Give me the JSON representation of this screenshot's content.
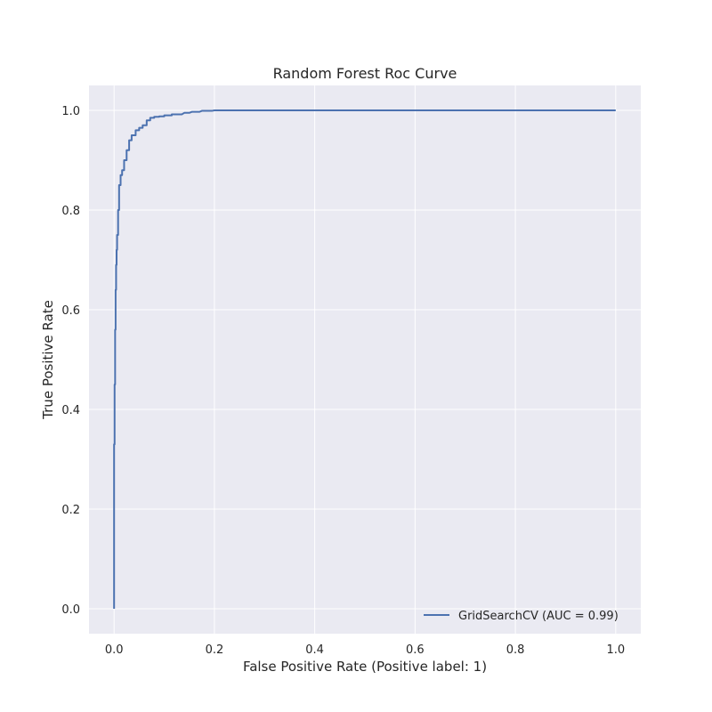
{
  "chart_data": {
    "type": "line",
    "title": "Random Forest Roc Curve",
    "xlabel": "False Positive Rate (Positive label: 1)",
    "ylabel": "True Positive Rate",
    "xlim": [
      -0.05,
      1.05
    ],
    "ylim": [
      -0.05,
      1.05
    ],
    "xticks": [
      0.0,
      0.2,
      0.4,
      0.6,
      0.8,
      1.0
    ],
    "yticks": [
      0.0,
      0.2,
      0.4,
      0.6,
      0.8,
      1.0
    ],
    "xtick_labels": [
      "0.0",
      "0.2",
      "0.4",
      "0.6",
      "0.8",
      "1.0"
    ],
    "ytick_labels": [
      "0.0",
      "0.2",
      "0.4",
      "0.6",
      "0.8",
      "1.0"
    ],
    "grid": true,
    "legend_position": "lower-right",
    "background_color": "#eaeaf2",
    "grid_color": "#ffffff",
    "series": [
      {
        "name": "GridSearchCV (AUC = 0.99)",
        "color": "#4c72b0",
        "x": [
          0.0,
          0.0,
          0.001,
          0.001,
          0.002,
          0.002,
          0.003,
          0.003,
          0.004,
          0.004,
          0.005,
          0.005,
          0.006,
          0.006,
          0.008,
          0.008,
          0.01,
          0.01,
          0.013,
          0.013,
          0.016,
          0.016,
          0.02,
          0.02,
          0.025,
          0.025,
          0.03,
          0.03,
          0.035,
          0.035,
          0.043,
          0.043,
          0.05,
          0.05,
          0.057,
          0.057,
          0.065,
          0.065,
          0.072,
          0.072,
          0.08,
          0.08,
          0.09,
          0.09,
          0.1,
          0.1,
          0.115,
          0.115,
          0.135,
          0.14,
          0.15,
          0.155,
          0.17,
          0.175,
          0.195,
          0.2,
          1.0
        ],
        "y": [
          0.0,
          0.33,
          0.33,
          0.45,
          0.45,
          0.56,
          0.56,
          0.64,
          0.64,
          0.69,
          0.69,
          0.72,
          0.72,
          0.75,
          0.75,
          0.8,
          0.8,
          0.85,
          0.85,
          0.87,
          0.87,
          0.88,
          0.88,
          0.9,
          0.9,
          0.92,
          0.92,
          0.94,
          0.94,
          0.95,
          0.95,
          0.96,
          0.96,
          0.965,
          0.965,
          0.97,
          0.97,
          0.98,
          0.98,
          0.985,
          0.985,
          0.987,
          0.987,
          0.988,
          0.988,
          0.99,
          0.99,
          0.992,
          0.992,
          0.995,
          0.995,
          0.997,
          0.997,
          0.999,
          0.999,
          1.0,
          1.0
        ]
      }
    ]
  }
}
